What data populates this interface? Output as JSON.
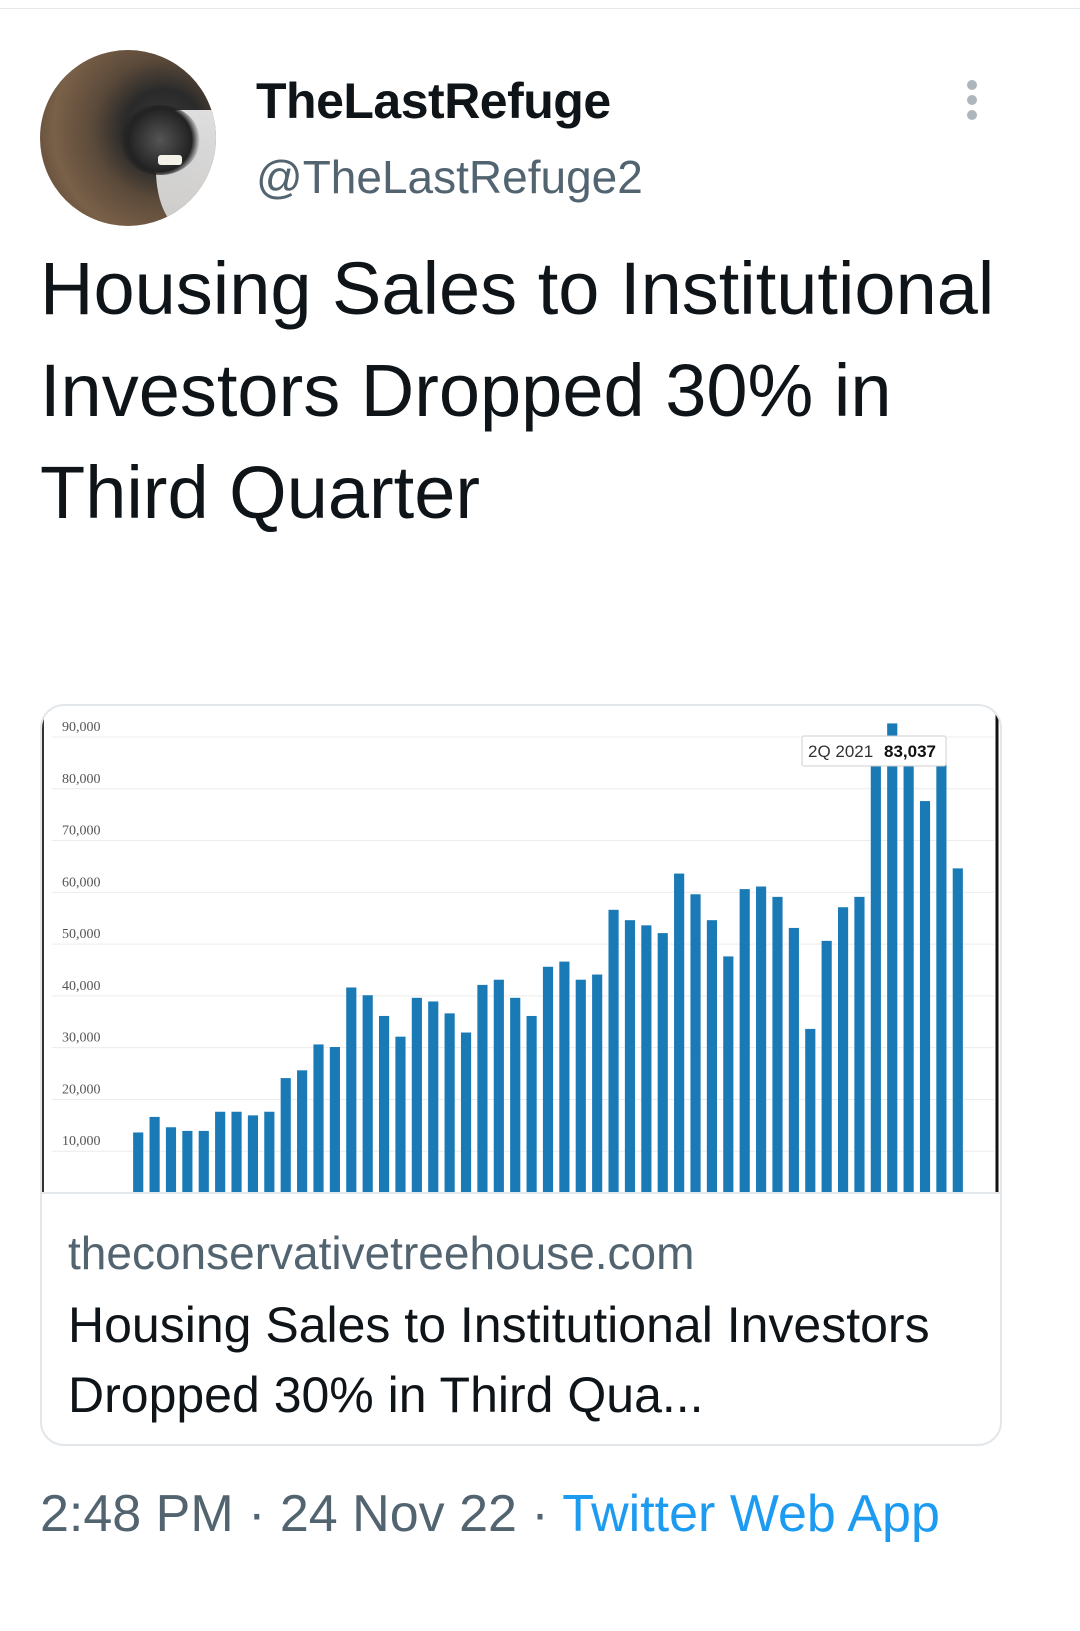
{
  "tweet": {
    "display_name": "TheLastRefuge",
    "handle": "@TheLastRefuge2",
    "text": "Housing Sales to Institutional Investors Dropped 30% in Third Quarter",
    "avatar_icon": "wolverine-avatar",
    "more_icon": "vertical-ellipsis-icon"
  },
  "card": {
    "domain": "theconservativetreehouse.com",
    "title": "Housing Sales to Institutional Investors Dropped 30% in Third Qua..."
  },
  "footer": {
    "time": "2:48 PM",
    "separator": "·",
    "date": "24 Nov 22",
    "source": "Twitter Web App"
  },
  "colors": {
    "bar": "#1a7ab5",
    "link": "#1d9bf0",
    "secondary_text": "#536471"
  },
  "chart_data": {
    "type": "bar",
    "y_ticks": [
      "10,000",
      "20,000",
      "30,000",
      "40,000",
      "50,000",
      "60,000",
      "70,000",
      "80,000",
      "90,000"
    ],
    "ylim": [
      0,
      90000
    ],
    "grid": true,
    "tooltip": {
      "label": "2Q 2021",
      "value": "83,037"
    },
    "values": [
      11500,
      14500,
      12500,
      11800,
      11800,
      15500,
      15500,
      14800,
      15500,
      22000,
      23500,
      28500,
      28000,
      39500,
      38000,
      34000,
      30000,
      37500,
      36800,
      34500,
      30800,
      40000,
      41000,
      37500,
      34000,
      43500,
      44500,
      41000,
      42000,
      54500,
      52500,
      51500,
      50000,
      61500,
      57500,
      52500,
      45500,
      58500,
      59000,
      57000,
      51000,
      31500,
      48500,
      55000,
      57000,
      83037,
      90500,
      86000,
      75500,
      87500,
      62500
    ]
  }
}
